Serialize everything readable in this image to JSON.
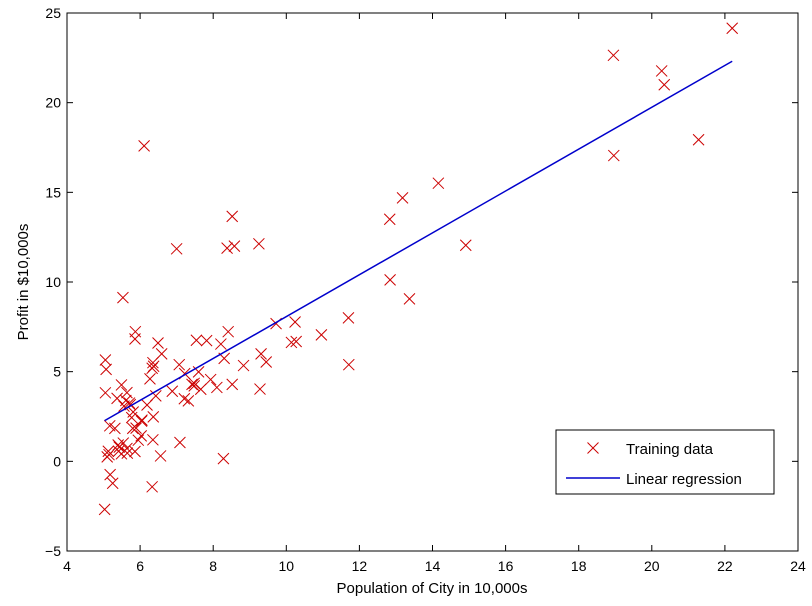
{
  "chart_data": {
    "type": "scatter",
    "title": "",
    "xlabel": "Population of City in 10,000s",
    "ylabel": "Profit in $10,000s",
    "xlim": [
      4,
      24
    ],
    "ylim": [
      -5,
      25
    ],
    "xticks": [
      4,
      6,
      8,
      10,
      12,
      14,
      16,
      18,
      20,
      22,
      24
    ],
    "yticks": [
      -5,
      0,
      5,
      10,
      15,
      20,
      25
    ],
    "grid": false,
    "legend_position": "bottom-right",
    "series": [
      {
        "name": "Training data",
        "kind": "scatter",
        "marker": "x",
        "color": "#cc0000",
        "points": [
          [
            6.11,
            17.59
          ],
          [
            5.53,
            9.13
          ],
          [
            8.52,
            13.66
          ],
          [
            7.0,
            11.85
          ],
          [
            5.86,
            6.82
          ],
          [
            8.38,
            11.89
          ],
          [
            7.48,
            4.35
          ],
          [
            8.58,
            12.0
          ],
          [
            6.49,
            6.6
          ],
          [
            5.05,
            3.82
          ],
          [
            5.71,
            3.25
          ],
          [
            14.16,
            15.51
          ],
          [
            5.73,
            3.16
          ],
          [
            8.41,
            7.23
          ],
          [
            5.64,
            0.72
          ],
          [
            5.37,
            3.51
          ],
          [
            6.37,
            5.3
          ],
          [
            5.13,
            0.56
          ],
          [
            6.43,
            3.65
          ],
          [
            7.07,
            5.39
          ],
          [
            6.19,
            3.14
          ],
          [
            20.27,
            21.77
          ],
          [
            5.49,
            4.26
          ],
          [
            6.33,
            5.19
          ],
          [
            5.56,
            3.08
          ],
          [
            18.95,
            22.64
          ],
          [
            12.83,
            13.5
          ],
          [
            10.96,
            7.05
          ],
          [
            13.18,
            14.69
          ],
          [
            22.2,
            24.15
          ],
          [
            5.25,
            -1.22
          ],
          [
            6.59,
            5.99
          ],
          [
            9.25,
            12.13
          ],
          [
            5.89,
            1.85
          ],
          [
            8.21,
            6.54
          ],
          [
            7.93,
            4.56
          ],
          [
            8.1,
            4.12
          ],
          [
            5.61,
            3.39
          ],
          [
            12.84,
            10.12
          ],
          [
            6.35,
            5.5
          ],
          [
            5.41,
            0.56
          ],
          [
            6.88,
            3.91
          ],
          [
            11.71,
            5.39
          ],
          [
            5.77,
            2.44
          ],
          [
            7.82,
            6.73
          ],
          [
            7.09,
            1.05
          ],
          [
            5.07,
            5.13
          ],
          [
            5.8,
            1.84
          ],
          [
            11.7,
            8.0
          ],
          [
            5.54,
            1.02
          ],
          [
            7.54,
            6.75
          ],
          [
            5.31,
            1.84
          ],
          [
            7.42,
            4.29
          ],
          [
            7.6,
            4.99
          ],
          [
            6.03,
            1.42
          ],
          [
            6.33,
            -1.42
          ],
          [
            6.36,
            2.48
          ],
          [
            6.27,
            4.6
          ],
          [
            5.64,
            3.83
          ],
          [
            9.31,
            5.99
          ],
          [
            9.45,
            5.54
          ],
          [
            8.83,
            5.34
          ],
          [
            5.18,
            -0.74
          ],
          [
            21.28,
            17.93
          ],
          [
            14.91,
            12.05
          ],
          [
            18.96,
            17.05
          ],
          [
            7.22,
            4.89
          ],
          [
            8.3,
            5.74
          ],
          [
            7.48,
            4.21
          ],
          [
            8.28,
            0.15
          ],
          [
            10.27,
            6.68
          ],
          [
            5.49,
            0.42
          ],
          [
            7.32,
            3.37
          ],
          [
            9.72,
            7.68
          ],
          [
            8.52,
            4.29
          ],
          [
            5.05,
            5.65
          ],
          [
            5.65,
            0.46
          ],
          [
            10.14,
            6.63
          ],
          [
            9.28,
            4.03
          ],
          [
            13.37,
            9.06
          ],
          [
            5.87,
            7.23
          ],
          [
            5.95,
            1.18
          ],
          [
            6.56,
            0.3
          ],
          [
            20.34,
            21.0
          ],
          [
            5.4,
            0.91
          ],
          [
            5.15,
            0.37
          ],
          [
            5.43,
            0.79
          ],
          [
            7.66,
            4.02
          ],
          [
            5.86,
            0.55
          ],
          [
            6.04,
            2.24
          ],
          [
            10.24,
            7.77
          ],
          [
            5.1,
            0.25
          ],
          [
            6.05,
            2.3
          ],
          [
            5.03,
            -2.68
          ],
          [
            5.81,
            2.75
          ],
          [
            6.35,
            1.2
          ],
          [
            7.21,
            3.49
          ],
          [
            5.17,
            1.98
          ]
        ]
      },
      {
        "name": "Linear regression",
        "kind": "line",
        "color": "#0000cc",
        "points": [
          [
            5.03,
            2.27
          ],
          [
            22.2,
            22.31
          ]
        ]
      }
    ]
  }
}
